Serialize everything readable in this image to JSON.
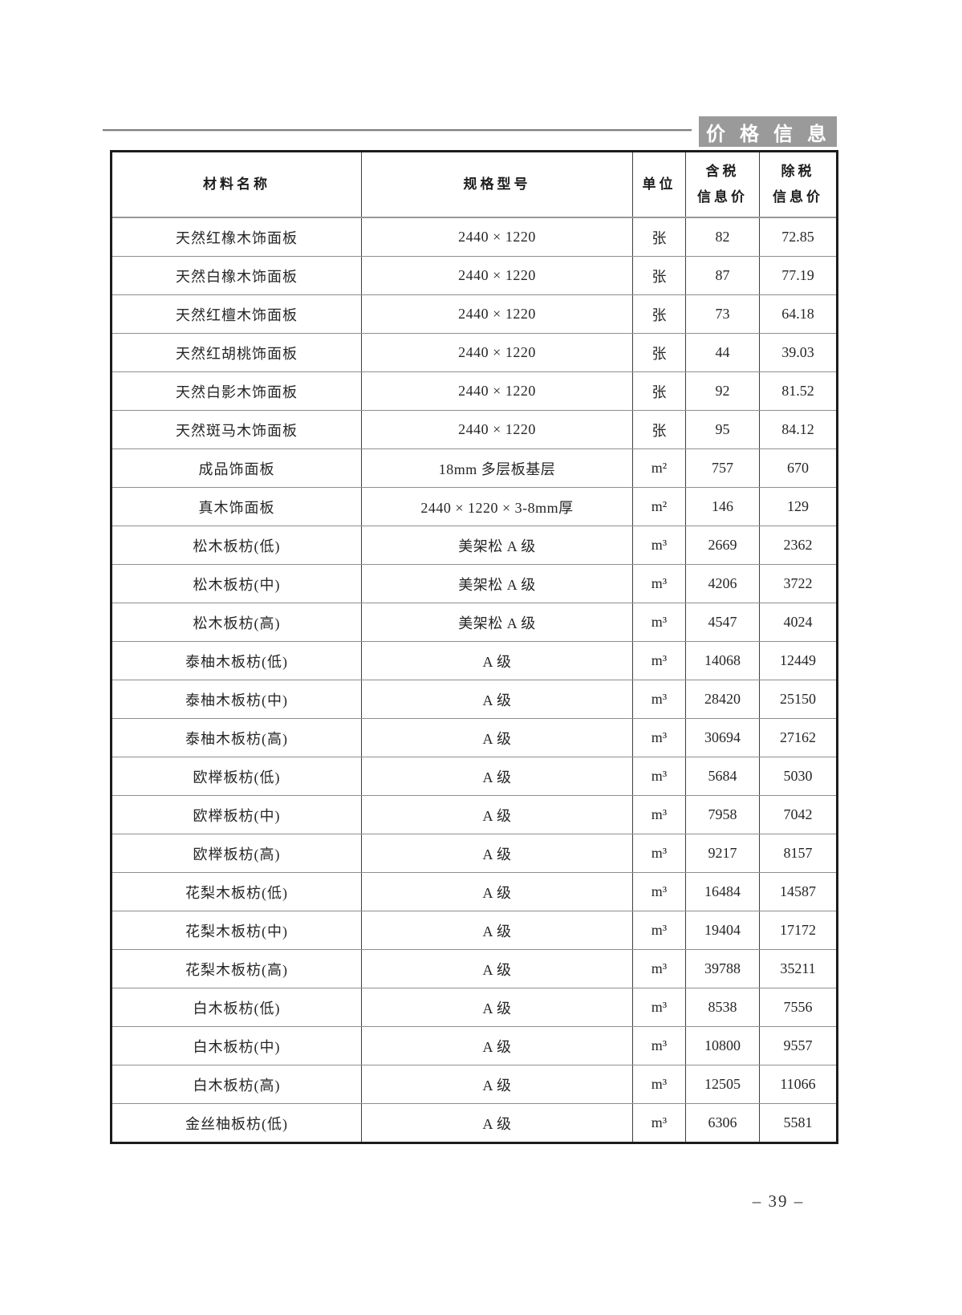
{
  "page": {
    "section_label": "价格信息",
    "page_number": "– 39 –"
  },
  "colors": {
    "section_label_bg": "#9a9a9a",
    "section_label_text": "#ffffff",
    "header_rule": "#7f7f7f",
    "table_outer_border": "#1c1c1c",
    "table_inner_line": "#8e8e8e",
    "text": "#2b2b2b"
  },
  "table": {
    "columns": [
      {
        "label": "材料名称"
      },
      {
        "label": "规格型号"
      },
      {
        "label": "单位"
      },
      {
        "label": "含税",
        "label2": "信息价"
      },
      {
        "label": "除税",
        "label2": "信息价"
      }
    ],
    "rows": [
      {
        "name": "天然红橡木饰面板",
        "spec": "2440 × 1220",
        "unit": "张",
        "price_tax": "82",
        "price_no_tax": "72.85"
      },
      {
        "name": "天然白橡木饰面板",
        "spec": "2440 × 1220",
        "unit": "张",
        "price_tax": "87",
        "price_no_tax": "77.19"
      },
      {
        "name": "天然红檀木饰面板",
        "spec": "2440 × 1220",
        "unit": "张",
        "price_tax": "73",
        "price_no_tax": "64.18"
      },
      {
        "name": "天然红胡桃饰面板",
        "spec": "2440 × 1220",
        "unit": "张",
        "price_tax": "44",
        "price_no_tax": "39.03"
      },
      {
        "name": "天然白影木饰面板",
        "spec": "2440 × 1220",
        "unit": "张",
        "price_tax": "92",
        "price_no_tax": "81.52"
      },
      {
        "name": "天然斑马木饰面板",
        "spec": "2440 × 1220",
        "unit": "张",
        "price_tax": "95",
        "price_no_tax": "84.12"
      },
      {
        "name": "成品饰面板",
        "spec": "18mm 多层板基层",
        "unit": "m²",
        "price_tax": "757",
        "price_no_tax": "670"
      },
      {
        "name": "真木饰面板",
        "spec": "2440 × 1220 × 3-8mm厚",
        "unit": "m²",
        "price_tax": "146",
        "price_no_tax": "129"
      },
      {
        "name": "松木板枋(低)",
        "spec": "美架松 A 级",
        "unit": "m³",
        "price_tax": "2669",
        "price_no_tax": "2362"
      },
      {
        "name": "松木板枋(中)",
        "spec": "美架松 A 级",
        "unit": "m³",
        "price_tax": "4206",
        "price_no_tax": "3722"
      },
      {
        "name": "松木板枋(高)",
        "spec": "美架松 A 级",
        "unit": "m³",
        "price_tax": "4547",
        "price_no_tax": "4024"
      },
      {
        "name": "泰柚木板枋(低)",
        "spec": "A 级",
        "unit": "m³",
        "price_tax": "14068",
        "price_no_tax": "12449"
      },
      {
        "name": "泰柚木板枋(中)",
        "spec": "A 级",
        "unit": "m³",
        "price_tax": "28420",
        "price_no_tax": "25150"
      },
      {
        "name": "泰柚木板枋(高)",
        "spec": "A 级",
        "unit": "m³",
        "price_tax": "30694",
        "price_no_tax": "27162"
      },
      {
        "name": "欧榉板枋(低)",
        "spec": "A 级",
        "unit": "m³",
        "price_tax": "5684",
        "price_no_tax": "5030"
      },
      {
        "name": "欧榉板枋(中)",
        "spec": "A 级",
        "unit": "m³",
        "price_tax": "7958",
        "price_no_tax": "7042"
      },
      {
        "name": "欧榉板枋(高)",
        "spec": "A 级",
        "unit": "m³",
        "price_tax": "9217",
        "price_no_tax": "8157"
      },
      {
        "name": "花梨木板枋(低)",
        "spec": "A 级",
        "unit": "m³",
        "price_tax": "16484",
        "price_no_tax": "14587"
      },
      {
        "name": "花梨木板枋(中)",
        "spec": "A 级",
        "unit": "m³",
        "price_tax": "19404",
        "price_no_tax": "17172"
      },
      {
        "name": "花梨木板枋(高)",
        "spec": "A 级",
        "unit": "m³",
        "price_tax": "39788",
        "price_no_tax": "35211"
      },
      {
        "name": "白木板枋(低)",
        "spec": "A 级",
        "unit": "m³",
        "price_tax": "8538",
        "price_no_tax": "7556"
      },
      {
        "name": "白木板枋(中)",
        "spec": "A 级",
        "unit": "m³",
        "price_tax": "10800",
        "price_no_tax": "9557"
      },
      {
        "name": "白木板枋(高)",
        "spec": "A 级",
        "unit": "m³",
        "price_tax": "12505",
        "price_no_tax": "11066"
      },
      {
        "name": "金丝柚板枋(低)",
        "spec": "A 级",
        "unit": "m³",
        "price_tax": "6306",
        "price_no_tax": "5581"
      }
    ]
  }
}
